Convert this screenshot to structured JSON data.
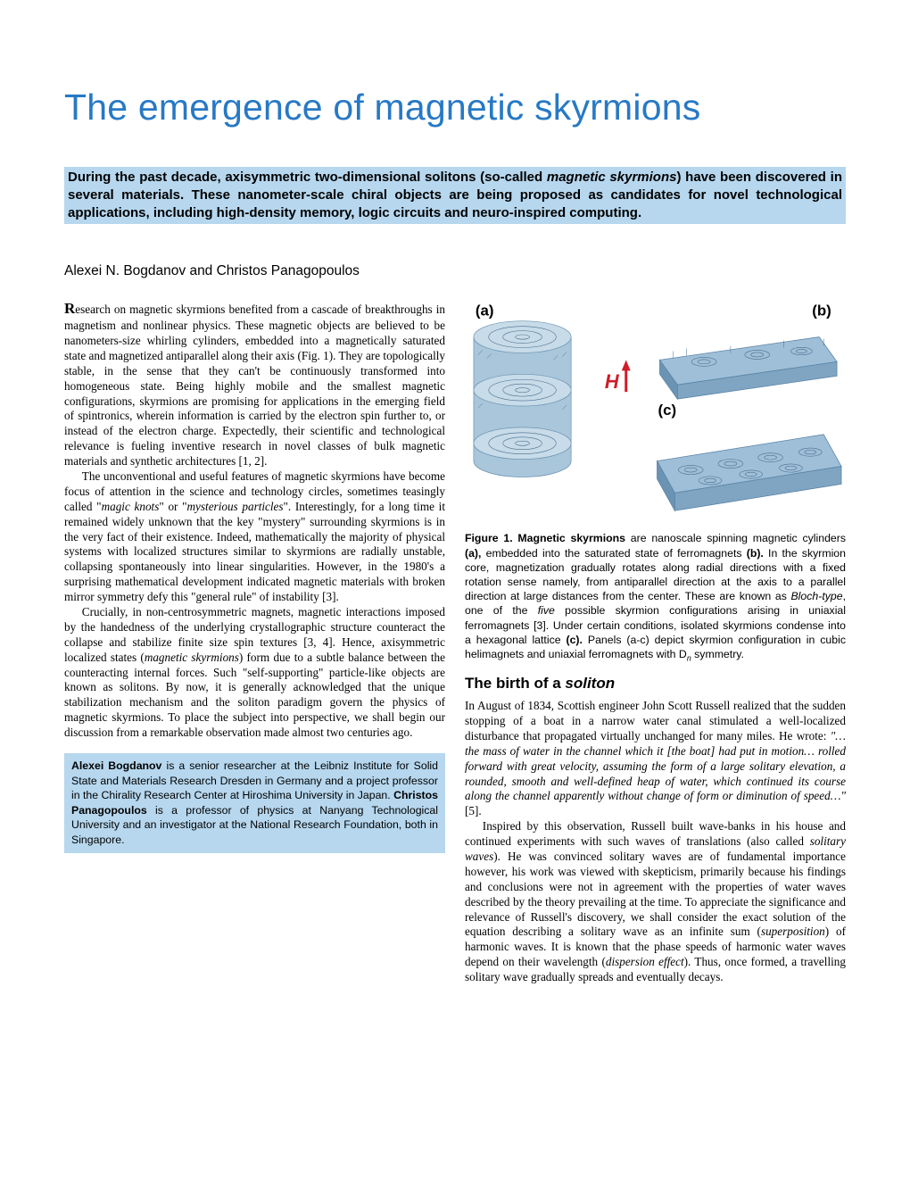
{
  "colors": {
    "title_color": "#2779c5",
    "abstract_bg": "#b6d7ee",
    "bio_bg": "#b6d7ee",
    "text": "#000000",
    "figure_panel_fill": "#9fbfd9",
    "figure_panel_stroke": "#5b85a6",
    "arrow_H_color": "#d01c2a",
    "spinner_dark": "#3a5c78"
  },
  "typography": {
    "title_font": "Arial",
    "title_size_pt": 31,
    "title_weight": 300,
    "body_font": "Times New Roman",
    "body_size_pt": 10,
    "abstract_font": "Arial",
    "abstract_size_pt": 11,
    "abstract_weight": "bold",
    "caption_font": "Arial",
    "caption_size_pt": 9,
    "heading_size_pt": 13
  },
  "title": "The emergence of magnetic skyrmions",
  "abstract_html": "During the past decade, axisymmetric two-dimensional solitons (so-called <i>magnetic skyrmions</i>) have been discovered in several materials. These nanometer-scale chiral objects are being proposed as candidates for novel technological applications, including high-density memory, logic circuits and neuro-inspired computing.",
  "authors": "Alexei N. Bogdanov and Christos Panagopoulos",
  "left_column": {
    "p1_html": "<span class=\"dropcap\">R</span>esearch on magnetic skyrmions benefited from a cascade of breakthroughs in magnetism and nonlinear physics. These magnetic objects are believed to be nanometers-size whirling cylinders, embedded into a magnetically saturated state and magnetized antiparallel along their axis (Fig. 1). They are topologically stable, in the sense that they can't be continuously transformed into homogeneous state. Being highly mobile and the smallest magnetic configurations, skyrmions are promising for applications in the emerging field of spintronics, wherein information is carried by the electron spin further to, or instead of the electron charge. Expectedly, their scientific and technological relevance is fueling inventive research in novel classes of bulk magnetic materials and synthetic architectures [1, 2].",
    "p2_html": "The unconventional and useful features of magnetic skyrmions have become focus of attention in the science and technology circles, sometimes teasingly called \"<i>magic knots</i>\" or \"<i>mysterious particles</i>\". Interestingly, for a long time it remained widely unknown that the key \"mystery\" surrounding skyrmions is in the very fact of their existence. Indeed, mathematically the majority of physical systems with localized structures similar to skyrmions are radially unstable, collapsing spontaneously into linear singularities. However, in the 1980's a surprising mathematical development indicated magnetic materials with broken mirror symmetry defy this \"general rule\" of instability [3].",
    "p3_html": "Crucially, in non-centrosymmetric magnets, magnetic interactions imposed by the handedness of the underlying crystallographic structure counteract the collapse and stabilize finite size spin textures [3, 4]. Hence, axisymmetric localized states (<i>magnetic skyrmions</i>) form due to a subtle balance between the counteracting internal forces. Such \"self-supporting\" particle-like objects are known as solitons. By now, it is generally acknowledged that the unique stabilization mechanism and the soliton paradigm govern the physics of magnetic skyrmions. To place the subject into perspective, we shall begin our discussion from a remarkable observation made almost two centuries ago."
  },
  "bio_html": "<b>Alexei Bogdanov</b> is a senior researcher at the Leibniz Institute for Solid State and Materials Research Dresden in Germany and a project professor in the Chirality Research Center at Hiroshima University in Japan. <b>Christos Panagopoulos</b> is a professor of physics at Nanyang Technological University and an investigator at the National Research Foundation, both in Singapore.",
  "figure1": {
    "labels": {
      "a": "(a)",
      "b": "(b)",
      "c": "(c)",
      "H": "H"
    },
    "caption_html": "<b>Figure 1. Magnetic skyrmions</b> are nanoscale spinning magnetic cylinders <b>(a),</b> embedded into the saturated state of ferromagnets <b>(b).</b> In the skyrmion core, magnetization gradually rotates along radial directions with a fixed rotation sense namely, from antiparallel direction at the axis to a parallel direction at large distances from the center. These are known as <i>Bloch-type</i>, one of the <i>five</i> possible skyrmion configurations arising in uniaxial ferromagnets [3]. Under certain conditions, isolated skyrmions condense into a hexagonal lattice <b>(c).</b> Panels (a-c) depict skyrmion configuration in cubic helimagnets and uniaxial ferromagnets with D<span class=\"sub\"><i>n</i></span> symmetry."
  },
  "section_heading_html": "The birth of a <i>soliton</i>",
  "right_column": {
    "p1_html": "In August of 1834, Scottish engineer John Scott Russell realized that the sudden stopping of a boat in a narrow water canal stimulated a well-localized disturbance that propagated virtually unchanged for many miles.  He wrote: <i>\"…the mass of water in the channel which it [the boat] had put in motion… rolled forward with great velocity, assuming the form of a large solitary elevation, a rounded, smooth and well-defined heap of water, which continued its course along the channel apparently without change of form or diminution of speed…\"</i> [5].",
    "p2_html": "Inspired by this observation, Russell built wave-banks in his house and continued experiments with such waves of translations (also called <i>solitary waves</i>). He was convinced solitary waves are of fundamental importance however, his work was viewed with skepticism, primarily because his findings and conclusions were not in agreement with the properties of water waves described by the theory prevailing at the time. To appreciate the significance and relevance of Russell's discovery, we shall consider the exact solution of the equation describing a solitary wave as an infinite sum (<i>superposition</i>) of harmonic waves. It is known that the phase speeds of harmonic water waves depend on their wavelength (<i>dispersion effect</i>). Thus, once formed, a travelling solitary wave gradually spreads and eventually decays."
  }
}
